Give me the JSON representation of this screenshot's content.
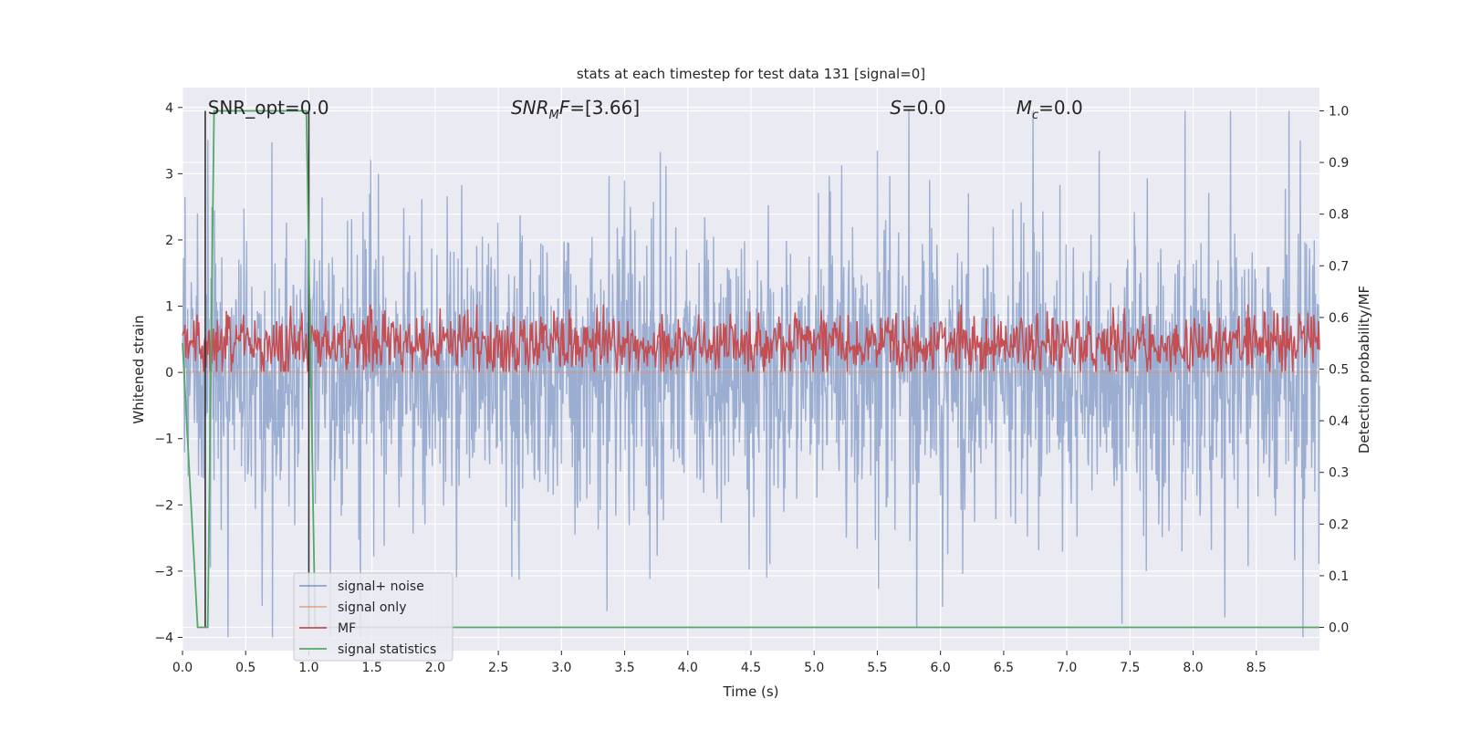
{
  "chart_data": {
    "type": "line",
    "title": "stats at each timestep for test data 131 [signal=0]",
    "xlabel": "Time (s)",
    "ylabel_left": "Whitened strain",
    "ylabel_right": "Detection probability/MF",
    "xlim": [
      0.0,
      9.0
    ],
    "ylim_left": [
      -4.2,
      4.3
    ],
    "ylim_right": [
      -0.045,
      1.045
    ],
    "x_ticks": [
      0.0,
      0.5,
      1.0,
      1.5,
      2.0,
      2.5,
      3.0,
      3.5,
      4.0,
      4.5,
      5.0,
      5.5,
      6.0,
      6.5,
      7.0,
      7.5,
      8.0,
      8.5
    ],
    "x_tick_labels": [
      "0.0",
      "0.5",
      "1.0",
      "1.5",
      "2.0",
      "2.5",
      "3.0",
      "3.5",
      "4.0",
      "4.5",
      "5.0",
      "5.5",
      "6.0",
      "6.5",
      "7.0",
      "7.5",
      "8.0",
      "8.5"
    ],
    "y_left_ticks": [
      -4,
      -3,
      -2,
      -1,
      0,
      1,
      2,
      3,
      4
    ],
    "y_left_tick_labels": [
      "−4",
      "−3",
      "−2",
      "−1",
      "0",
      "1",
      "2",
      "3",
      "4"
    ],
    "y_right_ticks": [
      0.0,
      0.1,
      0.2,
      0.3,
      0.4,
      0.5,
      0.6,
      0.7,
      0.8,
      0.9,
      1.0
    ],
    "y_right_tick_labels": [
      "0.0",
      "0.1",
      "0.2",
      "0.3",
      "0.4",
      "0.5",
      "0.6",
      "0.7",
      "0.8",
      "0.9",
      "1.0"
    ],
    "grid": true,
    "legend_placement": "lower-left",
    "annotations": [
      {
        "base": "SNR_opt=0.0",
        "sub": "",
        "rest": "",
        "italic_base": false,
        "x": 0.2
      },
      {
        "base": "SNR",
        "sub": "M",
        "rest": "F=[3.66]",
        "italic_base": true,
        "x": 2.6
      },
      {
        "base": "S",
        "sub": "",
        "rest": "=0.0",
        "italic_base": true,
        "x": 5.6
      },
      {
        "base": "M",
        "sub": "c",
        "rest": "=0.0",
        "italic_base": true,
        "x": 6.6
      }
    ],
    "series": [
      {
        "name": "signal+ noise",
        "color": "#4c72b0",
        "axis": "left",
        "description_values": {
          "envelope_max": 3.95,
          "envelope_min": -4.0,
          "typical_range": [
            -1.6,
            1.6
          ]
        }
      },
      {
        "name": "signal only",
        "color": "#dd8452",
        "axis": "left",
        "values_constant": 0.0
      },
      {
        "name": "MF",
        "color": "#c44e52",
        "axis": "right",
        "typical_range": [
          0.5,
          0.6
        ],
        "mean": 0.55
      },
      {
        "name": "signal statistics",
        "color": "#55a868",
        "axis": "right",
        "x": [
          0.0,
          0.12,
          0.2,
          0.25,
          0.98,
          1.05,
          9.0
        ],
        "y": [
          0.55,
          0.0,
          0.0,
          1.0,
          1.0,
          0.0,
          0.0
        ]
      }
    ],
    "vertical_markers": [
      0.18,
      1.0
    ]
  },
  "colors": {
    "plot_background": "#eaeaf2",
    "grid": "#ffffff",
    "noise": "#4c72b0",
    "signal_only": "#dd8452",
    "mf": "#c44e52",
    "stats": "#55a868",
    "marker": "#333333"
  }
}
